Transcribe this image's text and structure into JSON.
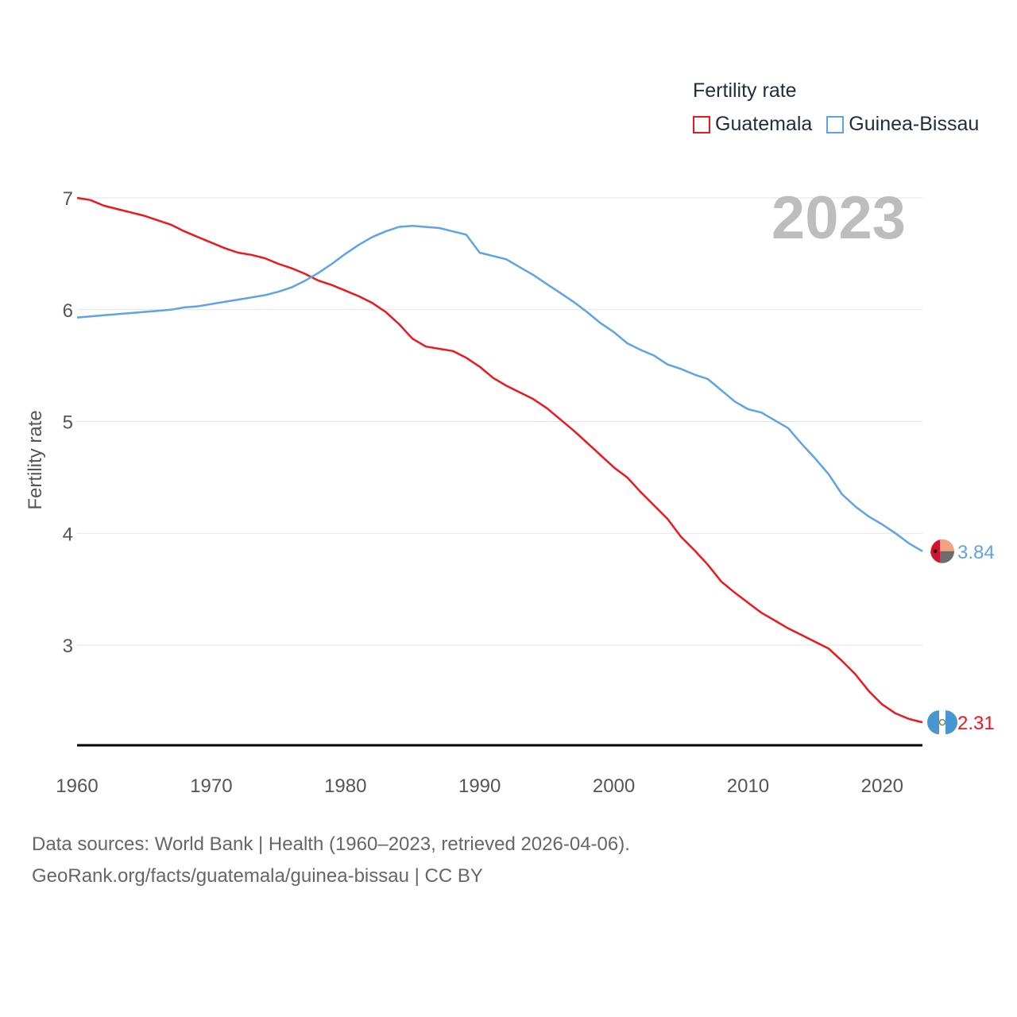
{
  "legend": {
    "title": "Fertility rate",
    "items": [
      {
        "label": "Guatemala",
        "color": "#e8191f"
      },
      {
        "label": "Guinea-Bissau",
        "color": "#5fa3e3"
      }
    ]
  },
  "footer": {
    "line1": "Data sources: World Bank | Health (1960–2023, retrieved 2026-04-06).",
    "line2": "GeoRank.org/facts/guatemala/guinea-bissau | CC BY"
  },
  "chart_data": {
    "type": "line",
    "title": "",
    "xlabel": "",
    "ylabel": "Fertility rate",
    "year_label": "2023",
    "xlim": [
      1960,
      2023
    ],
    "ylim": [
      2.1,
      7.0
    ],
    "x_ticks": [
      1960,
      1970,
      1980,
      1990,
      2000,
      2010,
      2020
    ],
    "y_ticks": [
      3,
      4,
      5,
      6,
      7
    ],
    "grid": true,
    "legend_position": "top-right",
    "x": [
      1960,
      1961,
      1962,
      1963,
      1964,
      1965,
      1966,
      1967,
      1968,
      1969,
      1970,
      1971,
      1972,
      1973,
      1974,
      1975,
      1976,
      1977,
      1978,
      1979,
      1980,
      1981,
      1982,
      1983,
      1984,
      1985,
      1986,
      1987,
      1988,
      1989,
      1990,
      1991,
      1992,
      1993,
      1994,
      1995,
      1996,
      1997,
      1998,
      1999,
      2000,
      2001,
      2002,
      2003,
      2004,
      2005,
      2006,
      2007,
      2008,
      2009,
      2010,
      2011,
      2012,
      2013,
      2014,
      2015,
      2016,
      2017,
      2018,
      2019,
      2020,
      2021,
      2022,
      2023
    ],
    "series": [
      {
        "name": "Guatemala",
        "color": "#e8191f",
        "end_label": "2.31",
        "values": [
          7.0,
          6.98,
          6.93,
          6.9,
          6.87,
          6.84,
          6.8,
          6.76,
          6.7,
          6.65,
          6.6,
          6.55,
          6.51,
          6.49,
          6.46,
          6.41,
          6.37,
          6.32,
          6.26,
          6.22,
          6.17,
          6.12,
          6.06,
          5.98,
          5.87,
          5.74,
          5.67,
          5.65,
          5.63,
          5.57,
          5.49,
          5.39,
          5.32,
          5.26,
          5.2,
          5.12,
          5.02,
          4.92,
          4.81,
          4.7,
          4.59,
          4.5,
          4.37,
          4.25,
          4.13,
          3.97,
          3.85,
          3.72,
          3.57,
          3.47,
          3.38,
          3.29,
          3.22,
          3.15,
          3.09,
          3.03,
          2.97,
          2.86,
          2.74,
          2.59,
          2.47,
          2.39,
          2.34,
          2.31
        ]
      },
      {
        "name": "Guinea-Bissau",
        "color": "#5fa3e3",
        "end_label": "3.84",
        "values": [
          5.93,
          5.94,
          5.95,
          5.96,
          5.97,
          5.98,
          5.99,
          6.0,
          6.02,
          6.03,
          6.05,
          6.07,
          6.09,
          6.11,
          6.13,
          6.16,
          6.2,
          6.26,
          6.33,
          6.41,
          6.5,
          6.58,
          6.65,
          6.7,
          6.74,
          6.75,
          6.74,
          6.73,
          6.7,
          6.67,
          6.51,
          6.48,
          6.45,
          6.38,
          6.31,
          6.23,
          6.15,
          6.07,
          5.98,
          5.88,
          5.8,
          5.7,
          5.64,
          5.59,
          5.51,
          5.47,
          5.42,
          5.38,
          5.28,
          5.18,
          5.11,
          5.08,
          5.01,
          4.94,
          4.8,
          4.67,
          4.53,
          4.35,
          4.24,
          4.15,
          4.08,
          4.0,
          3.91,
          3.84
        ]
      }
    ]
  }
}
